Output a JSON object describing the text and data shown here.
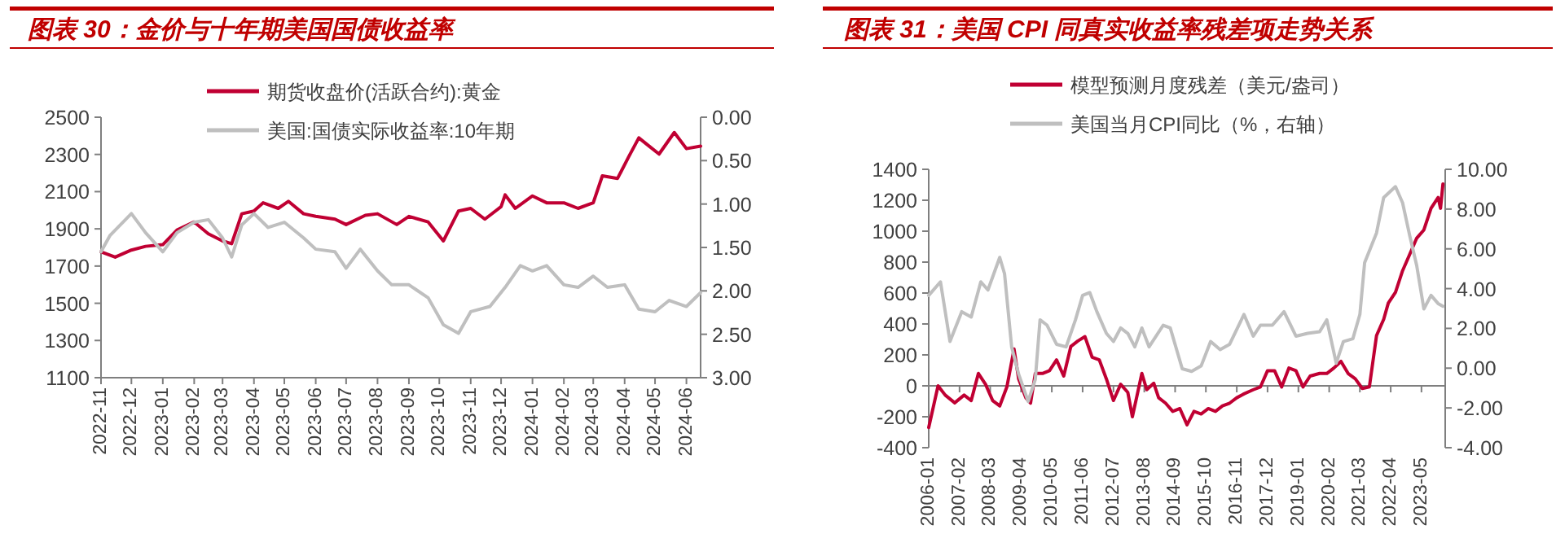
{
  "chart_data": [
    {
      "type": "line",
      "title": "图表 30：金价与十年期美国国债收益率",
      "legend": "top",
      "xlim": [
        "2022-11-01",
        "2024-06-15"
      ],
      "xticks": [
        "2022-11",
        "2022-12",
        "2023-01",
        "2023-02",
        "2023-03",
        "2023-04",
        "2023-05",
        "2023-06",
        "2023-07",
        "2023-08",
        "2023-09",
        "2023-10",
        "2023-11",
        "2023-12",
        "2024-01",
        "2024-02",
        "2024-03",
        "2024-04",
        "2024-05",
        "2024-06"
      ],
      "ylim": [
        1100,
        2500
      ],
      "yticks": [
        1100,
        1300,
        1500,
        1700,
        1900,
        2100,
        2300,
        2500
      ],
      "y2lim": [
        3,
        0
      ],
      "y2ticks": [
        {
          "value": 0,
          "label": "0.00"
        },
        {
          "value": 0.5,
          "label": "0.50"
        },
        {
          "value": 1,
          "label": "1.00"
        },
        {
          "value": 1.5,
          "label": "1.50"
        },
        {
          "value": 2,
          "label": "2.00"
        },
        {
          "value": 2.5,
          "label": "2.50"
        },
        {
          "value": 3,
          "label": "3.00"
        }
      ],
      "series": [
        {
          "name": "期货收盘价(活跃合约):黄金",
          "color": "#c00033",
          "x": [
            "2022-11-01",
            "2022-11-15",
            "2022-12-01",
            "2022-12-15",
            "2023-01-01",
            "2023-01-15",
            "2023-02-01",
            "2023-02-15",
            "2023-03-01",
            "2023-03-10",
            "2023-03-20",
            "2023-04-01",
            "2023-04-10",
            "2023-04-25",
            "2023-05-05",
            "2023-05-20",
            "2023-06-01",
            "2023-06-20",
            "2023-07-01",
            "2023-07-20",
            "2023-08-01",
            "2023-08-20",
            "2023-09-01",
            "2023-09-20",
            "2023-10-05",
            "2023-10-20",
            "2023-11-01",
            "2023-11-15",
            "2023-12-01",
            "2023-12-05",
            "2023-12-15",
            "2024-01-01",
            "2024-01-15",
            "2024-02-01",
            "2024-02-15",
            "2024-03-01",
            "2024-03-10",
            "2024-03-25",
            "2024-04-05",
            "2024-04-15",
            "2024-04-25",
            "2024-05-05",
            "2024-05-20",
            "2024-06-01",
            "2024-06-15"
          ],
          "values": [
            1777,
            1748,
            1786,
            1806,
            1815,
            1894,
            1937,
            1873,
            1835,
            1820,
            1981,
            1996,
            2040,
            2010,
            2048,
            1981,
            1967,
            1952,
            1923,
            1973,
            1981,
            1923,
            1967,
            1937,
            1835,
            1996,
            2010,
            1952,
            2019,
            2083,
            2010,
            2077,
            2040,
            2040,
            2010,
            2040,
            2185,
            2171,
            2287,
            2389,
            2345,
            2302,
            2418,
            2331,
            2345
          ]
        },
        {
          "name": "美国:国债实际收益率:10年期",
          "color": "#bfbfbf",
          "axis": "y2",
          "x": [
            "2022-11-01",
            "2022-11-10",
            "2022-12-01",
            "2022-12-15",
            "2023-01-01",
            "2023-01-15",
            "2023-02-01",
            "2023-02-15",
            "2023-03-01",
            "2023-03-10",
            "2023-03-20",
            "2023-04-01",
            "2023-04-15",
            "2023-05-01",
            "2023-05-20",
            "2023-06-01",
            "2023-06-20",
            "2023-07-01",
            "2023-07-15",
            "2023-08-01",
            "2023-08-15",
            "2023-09-01",
            "2023-09-20",
            "2023-10-05",
            "2023-10-20",
            "2023-11-01",
            "2023-11-20",
            "2023-12-05",
            "2023-12-20",
            "2024-01-01",
            "2024-01-15",
            "2024-02-01",
            "2024-02-15",
            "2024-03-01",
            "2024-03-15",
            "2024-04-01",
            "2024-04-15",
            "2024-05-01",
            "2024-05-15",
            "2024-06-01",
            "2024-06-15"
          ],
          "values": [
            1.55,
            1.36,
            1.11,
            1.33,
            1.55,
            1.33,
            1.21,
            1.18,
            1.39,
            1.61,
            1.24,
            1.11,
            1.27,
            1.21,
            1.39,
            1.52,
            1.55,
            1.74,
            1.52,
            1.77,
            1.93,
            1.93,
            2.08,
            2.39,
            2.49,
            2.24,
            2.18,
            1.96,
            1.71,
            1.77,
            1.71,
            1.93,
            1.96,
            1.83,
            1.96,
            1.93,
            2.21,
            2.24,
            2.11,
            2.18,
            2.02
          ]
        }
      ]
    },
    {
      "type": "line",
      "title": "图表 31：美国 CPI 同真实收益率残差项走势关系",
      "legend": "top",
      "xlim": [
        "2006-01",
        "2024-03"
      ],
      "xticks": [
        "2006-01",
        "2007-02",
        "2008-03",
        "2009-04",
        "2010-05",
        "2011-06",
        "2012-07",
        "2013-08",
        "2014-09",
        "2015-10",
        "2016-11",
        "2017-12",
        "2019-01",
        "2020-02",
        "2021-03",
        "2022-04",
        "2023-05"
      ],
      "ylim": [
        -400,
        1400
      ],
      "yticks": [
        -400,
        -200,
        0,
        200,
        400,
        600,
        800,
        1000,
        1200,
        1400
      ],
      "y2lim": [
        -4,
        10
      ],
      "y2ticks": [
        {
          "value": -4,
          "label": "-4.00"
        },
        {
          "value": -2,
          "label": "-2.00"
        },
        {
          "value": 0,
          "label": "0.00"
        },
        {
          "value": 2,
          "label": "2.00"
        },
        {
          "value": 4,
          "label": "4.00"
        },
        {
          "value": 6,
          "label": "6.00"
        },
        {
          "value": 8,
          "label": "8.00"
        },
        {
          "value": 10,
          "label": "10.00"
        }
      ],
      "series": [
        {
          "name": "模型预测月度残差（美元/盎司）",
          "color": "#c00033",
          "x": [
            "2006-01",
            "2006-05",
            "2006-08",
            "2006-12",
            "2007-04",
            "2007-07",
            "2007-10",
            "2008-01",
            "2008-04",
            "2008-07",
            "2008-10",
            "2009-01",
            "2009-03",
            "2009-06",
            "2009-08",
            "2009-10",
            "2010-01",
            "2010-04",
            "2010-07",
            "2010-10",
            "2011-01",
            "2011-04",
            "2011-07",
            "2011-10",
            "2012-01",
            "2012-04",
            "2012-07",
            "2012-10",
            "2013-01",
            "2013-03",
            "2013-05",
            "2013-07",
            "2013-09",
            "2013-12",
            "2014-02",
            "2014-05",
            "2014-08",
            "2014-11",
            "2015-02",
            "2015-05",
            "2015-08",
            "2015-11",
            "2016-02",
            "2016-05",
            "2016-08",
            "2016-11",
            "2017-02",
            "2017-06",
            "2017-09",
            "2017-12",
            "2018-03",
            "2018-06",
            "2018-09",
            "2018-12",
            "2019-03",
            "2019-06",
            "2019-10",
            "2020-01",
            "2020-04",
            "2020-07",
            "2020-10",
            "2021-01",
            "2021-04",
            "2021-07",
            "2021-10",
            "2022-01",
            "2022-03",
            "2022-06",
            "2022-09",
            "2022-12",
            "2023-03",
            "2023-06",
            "2023-09",
            "2023-12",
            "2024-01",
            "2024-02"
          ],
          "values": [
            -270,
            0,
            -60,
            -110,
            -60,
            -95,
            80,
            10,
            -95,
            -130,
            -7,
            238,
            45,
            -77,
            -112,
            80,
            80,
            98,
            168,
            63,
            255,
            290,
            318,
            185,
            168,
            45,
            -95,
            10,
            -42,
            -200,
            -60,
            80,
            -25,
            17,
            -77,
            -112,
            -165,
            -147,
            -252,
            -165,
            -182,
            -147,
            -165,
            -130,
            -112,
            -77,
            -52,
            -25,
            -7,
            98,
            98,
            -7,
            115,
            98,
            -7,
            63,
            80,
            80,
            115,
            158,
            80,
            45,
            -17,
            -7,
            325,
            430,
            535,
            605,
            745,
            850,
            955,
            1008,
            1148,
            1218,
            1148,
            1305
          ]
        },
        {
          "name": "美国当月CPI同比（%，右轴）",
          "color": "#bfbfbf",
          "axis": "y2",
          "x": [
            "2006-01",
            "2006-06",
            "2006-10",
            "2007-03",
            "2007-07",
            "2007-11",
            "2008-02",
            "2008-07",
            "2008-09",
            "2008-12",
            "2009-03",
            "2009-07",
            "2009-10",
            "2009-12",
            "2010-03",
            "2010-07",
            "2010-11",
            "2011-03",
            "2011-06",
            "2011-09",
            "2011-12",
            "2012-04",
            "2012-07",
            "2012-10",
            "2013-01",
            "2013-04",
            "2013-07",
            "2013-10",
            "2014-04",
            "2014-07",
            "2014-12",
            "2015-04",
            "2015-08",
            "2015-12",
            "2016-04",
            "2016-08",
            "2017-02",
            "2017-06",
            "2017-09",
            "2018-02",
            "2018-07",
            "2018-12",
            "2019-05",
            "2019-10",
            "2020-01",
            "2020-05",
            "2020-08",
            "2020-12",
            "2021-03",
            "2021-05",
            "2021-10",
            "2022-01",
            "2022-06",
            "2022-09",
            "2022-12",
            "2023-03",
            "2023-06",
            "2023-09",
            "2023-12",
            "2024-02"
          ],
          "values": [
            3.66,
            4.34,
            1.34,
            2.84,
            2.57,
            4.34,
            3.93,
            5.57,
            4.75,
            1.07,
            -0.3,
            -1.67,
            -0.57,
            2.43,
            2.16,
            1.2,
            1.07,
            2.43,
            3.66,
            3.8,
            2.84,
            1.75,
            1.34,
            2.02,
            1.75,
            1.07,
            2.02,
            1.07,
            2.16,
            2.02,
            -0.03,
            -0.16,
            0.11,
            1.34,
            0.93,
            1.2,
            2.7,
            1.61,
            2.16,
            2.16,
            2.84,
            1.61,
            1.75,
            1.83,
            2.43,
            0.25,
            1.34,
            1.48,
            2.7,
            5.3,
            6.8,
            8.58,
            9.13,
            8.31,
            6.67,
            5.16,
            2.98,
            3.66,
            3.25,
            3.11
          ]
        }
      ]
    }
  ]
}
